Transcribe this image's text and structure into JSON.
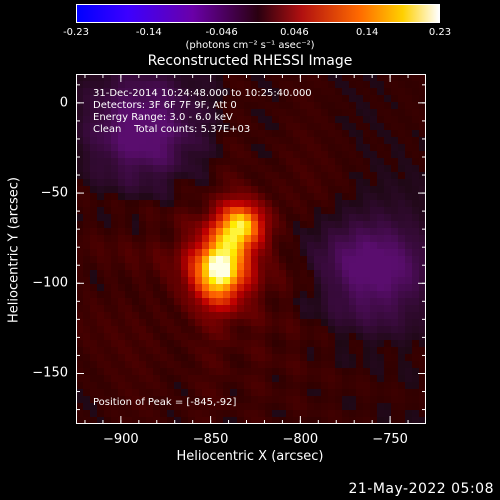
{
  "colorbar": {
    "ticks": [
      "-0.23",
      "-0.14",
      "-0.046",
      "0.046",
      "0.14",
      "0.23"
    ],
    "units": "(photons cm⁻² s⁻¹ asec⁻²)"
  },
  "title": "Reconstructed RHESSI Image",
  "info_lines": [
    "31-Dec-2014 10:24:48.000 to 10:25:40.000",
    "Detectors: 3F 6F 7F 9F, Att 0",
    "Energy Range: 3.0 - 6.0 keV",
    "Clean    Total counts: 5.37E+03"
  ],
  "peak_text": "Position of Peak = [-845,-92]",
  "footer": "21-May-2022 05:08",
  "chart_data": {
    "type": "heatmap",
    "title": "Reconstructed RHESSI Image",
    "xlabel": "Heliocentric X (arcsec)",
    "ylabel": "Heliocentric Y (arcsec)",
    "xlim": [
      -925,
      -730
    ],
    "ylim": [
      -178,
      16
    ],
    "xticks": [
      -900,
      -850,
      -800,
      -750
    ],
    "yticks": [
      0,
      -50,
      -100,
      -150
    ],
    "colorscale": "red-temperature",
    "value_range": [
      -0.23,
      0.23
    ],
    "peak": {
      "x": -845,
      "y": -92,
      "value": 0.23
    },
    "secondary_source": {
      "x": -833,
      "y": -68
    },
    "negative_regions": [
      {
        "x": -760,
        "y": -92
      },
      {
        "x": -887,
        "y": -15
      }
    ]
  }
}
